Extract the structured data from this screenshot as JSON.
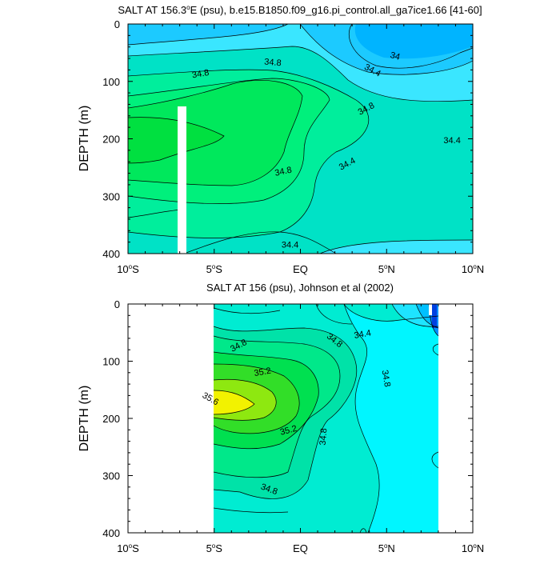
{
  "chart_data": [
    {
      "type": "contour",
      "title": "SALT AT 156.3°E (psu), b.e15.B1850.f09_g16.pi_control.all_ga7ice1.66 [41-60]",
      "title_parts": [
        "SALT AT 156.3",
        "o",
        "E (psu), b.e15.B1850.f09_g16.pi_control.all_ga7ice1.66 [41-60]"
      ],
      "ylabel": "DEPTH (m)",
      "xlabel": "",
      "x_range": [
        -10,
        10
      ],
      "y_range": [
        0,
        400
      ],
      "y_reversed": true,
      "x_ticks": [
        {
          "value": -10,
          "label": "10",
          "sup": "o",
          "hemi": "S"
        },
        {
          "value": -5,
          "label": "5",
          "sup": "o",
          "hemi": "S"
        },
        {
          "value": 0,
          "label": "EQ",
          "sup": "",
          "hemi": ""
        },
        {
          "value": 5,
          "label": "5",
          "sup": "o",
          "hemi": "N"
        },
        {
          "value": 10,
          "label": "10",
          "sup": "o",
          "hemi": "N"
        }
      ],
      "y_ticks": [
        0,
        100,
        200,
        300,
        400
      ],
      "contour_labels": [
        {
          "text": "34.8",
          "x": -5.8,
          "y": 86,
          "angle": -10
        },
        {
          "text": "34.8",
          "x": -1.6,
          "y": 66,
          "angle": 5
        },
        {
          "text": "34",
          "x": 5.5,
          "y": 55,
          "angle": 15
        },
        {
          "text": "34.4",
          "x": 4.2,
          "y": 80,
          "angle": 28
        },
        {
          "text": "34.8",
          "x": 3.8,
          "y": 147,
          "angle": -28
        },
        {
          "text": "34.4",
          "x": 8.8,
          "y": 202,
          "angle": 0
        },
        {
          "text": "34.4",
          "x": 2.7,
          "y": 243,
          "angle": -28
        },
        {
          "text": "34.8",
          "x": -1.0,
          "y": 256,
          "angle": -12
        },
        {
          "text": "34.4",
          "x": -0.6,
          "y": 384,
          "angle": 0
        }
      ],
      "missing_region": {
        "x": [
          -7.1,
          -6.6
        ],
        "y": [
          145,
          400
        ]
      }
    },
    {
      "type": "contour",
      "title": "SALT AT 156 (psu), Johnson et al (2002)",
      "ylabel": "DEPTH (m)",
      "xlabel": "",
      "x_range": [
        -10,
        10
      ],
      "y_range": [
        0,
        400
      ],
      "y_reversed": true,
      "x_ticks": [
        {
          "value": -10,
          "label": "10",
          "sup": "o",
          "hemi": "S"
        },
        {
          "value": -5,
          "label": "5",
          "sup": "o",
          "hemi": "S"
        },
        {
          "value": 0,
          "label": "EQ",
          "sup": "",
          "hemi": ""
        },
        {
          "value": 5,
          "label": "5",
          "sup": "o",
          "hemi": "N"
        },
        {
          "value": 10,
          "label": "10",
          "sup": "o",
          "hemi": "N"
        }
      ],
      "y_ticks": [
        0,
        100,
        200,
        300,
        400
      ],
      "contour_labels": [
        {
          "text": "34.8",
          "x": -3.6,
          "y": 72,
          "angle": -28
        },
        {
          "text": "34.8",
          "x": 2.0,
          "y": 63,
          "angle": 38
        },
        {
          "text": "34.4",
          "x": 3.6,
          "y": 52,
          "angle": -10
        },
        {
          "text": "35.2",
          "x": -2.2,
          "y": 118,
          "angle": -10
        },
        {
          "text": "35.6",
          "x": -5.2,
          "y": 165,
          "angle": 30
        },
        {
          "text": "35.2",
          "x": -0.7,
          "y": 220,
          "angle": -15
        },
        {
          "text": "34.8",
          "x": 1.3,
          "y": 232,
          "angle": -85
        },
        {
          "text": "34.8",
          "x": 5.0,
          "y": 130,
          "angle": 80
        },
        {
          "text": "34.8",
          "x": -1.8,
          "y": 323,
          "angle": 20
        }
      ],
      "data_region": {
        "x": [
          -5,
          8
        ],
        "y": [
          0,
          400
        ]
      }
    }
  ]
}
